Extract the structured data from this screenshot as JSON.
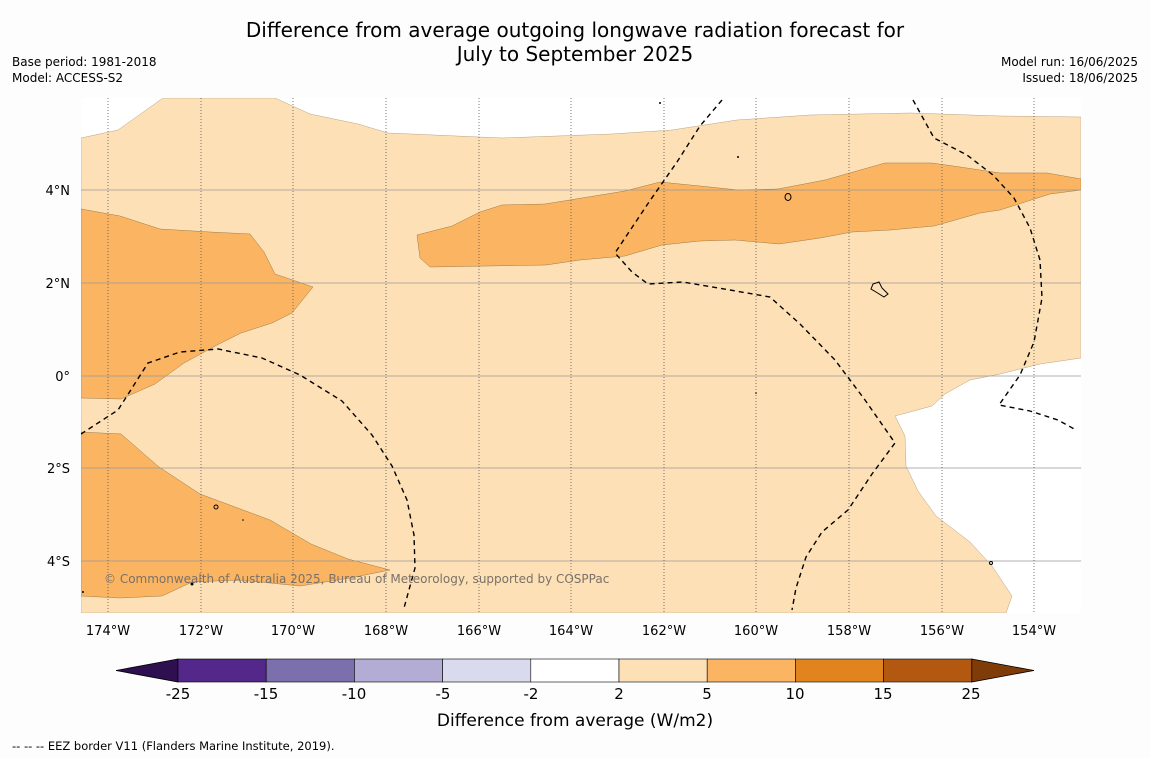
{
  "title": {
    "line1": "Difference from average outgoing longwave radiation forecast for",
    "line2": "July to September 2025"
  },
  "meta_left": {
    "base_period": "Base period: 1981-2018",
    "model": "Model: ACCESS-S2"
  },
  "meta_right": {
    "model_run": "Model run: 16/06/2025",
    "issued": "Issued: 18/06/2025"
  },
  "map": {
    "copyright": "© Commonwealth of Australia 2025, Bureau of Meteorology, supported by COSPPac",
    "lon_labels": [
      "174°W",
      "172°W",
      "170°W",
      "168°W",
      "166°W",
      "164°W",
      "162°W",
      "160°W",
      "158°W",
      "156°W",
      "154°W"
    ],
    "lat_labels": [
      "4°N",
      "2°N",
      "0°",
      "2°S",
      "4°S"
    ],
    "lon_range": [
      -174.6,
      -153.0
    ],
    "lat_range": [
      -5.2,
      5.9
    ]
  },
  "colorbar": {
    "label": "Difference from average (W/m2)",
    "ticks": [
      "-25",
      "-15",
      "-10",
      "-5",
      "-2",
      "2",
      "5",
      "10",
      "15",
      "25"
    ],
    "colors": [
      "#2e0f50",
      "#53288a",
      "#7b6fad",
      "#b3acd5",
      "#dadaee",
      "#ffffff",
      "#fde0b6",
      "#fbb562",
      "#e1841e",
      "#b35810",
      "#7f3b08"
    ]
  },
  "footer": "--  --  -- EEZ border V11 (Flanders Marine Institute, 2019)."
}
